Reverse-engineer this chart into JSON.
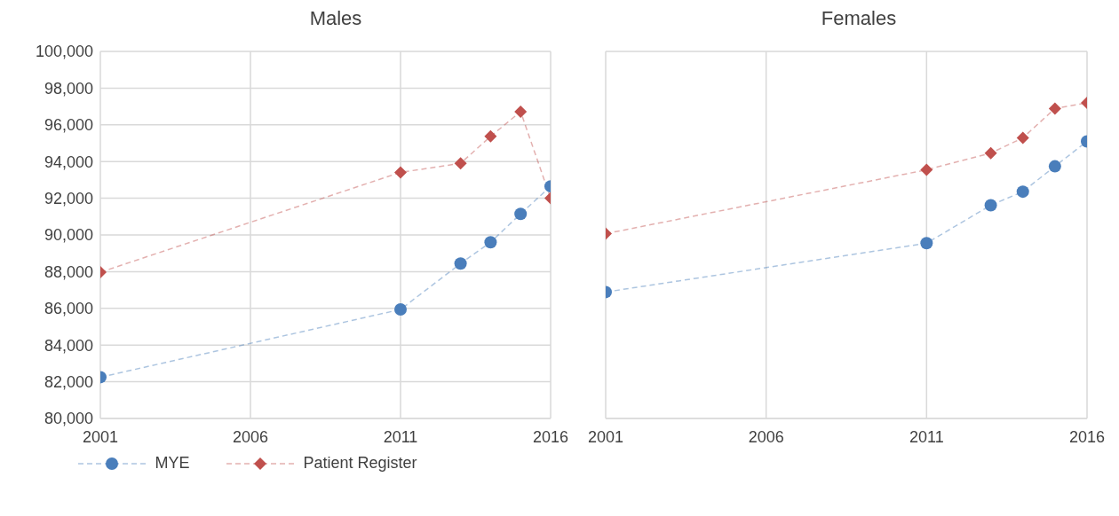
{
  "chart_data": [
    {
      "type": "line",
      "title": "Males",
      "x": [
        2001,
        2011,
        2013,
        2014,
        2015,
        2016
      ],
      "xlim": [
        2001,
        2016
      ],
      "xticks": [
        2001,
        2006,
        2011,
        2016
      ],
      "ylim": [
        80000,
        100000
      ],
      "yticks": [
        {
          "value": 80000,
          "label": "80,000"
        },
        {
          "value": 82000,
          "label": "82,000"
        },
        {
          "value": 84000,
          "label": "84,000"
        },
        {
          "value": 86000,
          "label": "86,000"
        },
        {
          "value": 88000,
          "label": "88,000"
        },
        {
          "value": 90000,
          "label": "90,000"
        },
        {
          "value": 92000,
          "label": "92,000"
        },
        {
          "value": 94000,
          "label": "94,000"
        },
        {
          "value": 96000,
          "label": "96,000"
        },
        {
          "value": 98000,
          "label": "98,000"
        },
        {
          "value": 100000,
          "label": "100,000"
        }
      ],
      "grid": true,
      "legend": "bottom",
      "line_style": "dashed",
      "series": [
        {
          "name": "MYE",
          "color": "#4a7ebb",
          "marker": "circle",
          "values": [
            82250,
            85940,
            88440,
            89600,
            91150,
            92650
          ]
        },
        {
          "name": "Patient Register",
          "color": "#c0504d",
          "marker": "diamond",
          "values": [
            87970,
            93410,
            93900,
            95370,
            96720,
            92000
          ]
        }
      ]
    },
    {
      "type": "line",
      "title": "Females",
      "x": [
        2001,
        2011,
        2013,
        2014,
        2015,
        2016
      ],
      "xlim": [
        2001,
        2016
      ],
      "xticks": [
        2001,
        2006,
        2011,
        2016
      ],
      "ylim": [
        80000,
        100000
      ],
      "yticks": [
        {
          "value": 80000,
          "label": null
        },
        {
          "value": 82000,
          "label": null
        },
        {
          "value": 84000,
          "label": null
        },
        {
          "value": 86000,
          "label": null
        },
        {
          "value": 88000,
          "label": null
        },
        {
          "value": 90000,
          "label": null
        },
        {
          "value": 92000,
          "label": null
        },
        {
          "value": 94000,
          "label": null
        },
        {
          "value": 96000,
          "label": null
        },
        {
          "value": 98000,
          "label": null
        },
        {
          "value": 100000,
          "label": null
        }
      ],
      "grid": true,
      "tick_labels": "x",
      "line_style": "dashed",
      "series": [
        {
          "color": "#4a7ebb",
          "marker": "circle",
          "values": [
            86890,
            89550,
            91620,
            92360,
            93740,
            95100
          ]
        },
        {
          "color": "#c0504d",
          "marker": "diamond",
          "values": [
            90070,
            93550,
            94460,
            95290,
            96890,
            97200
          ]
        }
      ]
    }
  ]
}
